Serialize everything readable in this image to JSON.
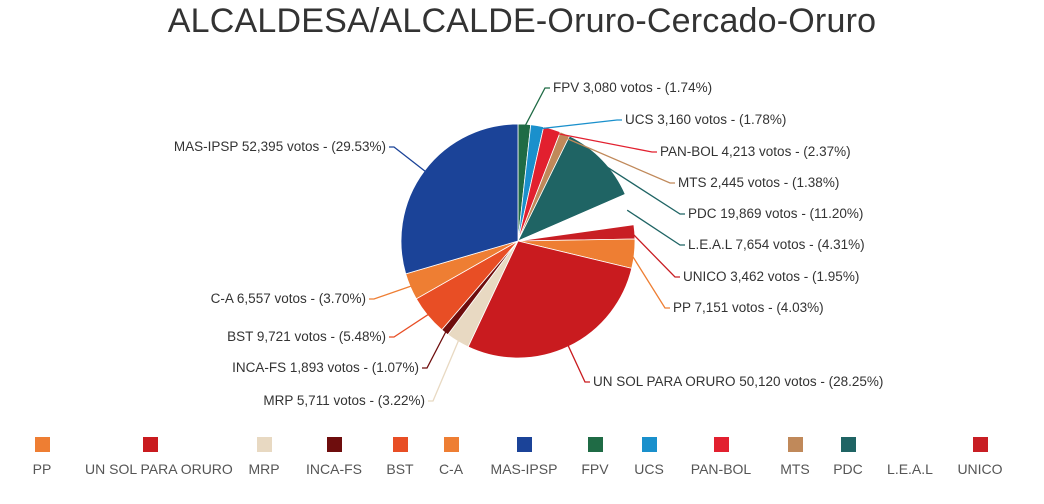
{
  "chart_data": {
    "type": "pie",
    "title": "ALCALDESA/ALCALDE-Oruro-Cercado-Oruro",
    "slices": [
      {
        "name": "FPV",
        "votes": 3080,
        "label": "FPV 3,080 votos - (1.74%)",
        "color": "#1f6b45"
      },
      {
        "name": "UCS",
        "votes": 3160,
        "label": "UCS 3,160 votos - (1.78%)",
        "color": "#1a90cc"
      },
      {
        "name": "PAN-BOL",
        "votes": 4213,
        "label": "PAN-BOL 4,213 votos - (2.37%)",
        "color": "#e2202f"
      },
      {
        "name": "MTS",
        "votes": 2445,
        "label": "MTS 2,445 votos - (1.38%)",
        "color": "#c0895a"
      },
      {
        "name": "PDC",
        "votes": 19869,
        "label": "PDC 19,869 votos - (11.20%)",
        "color": "#1f6464"
      },
      {
        "name": "L.E.A.L",
        "votes": 7654,
        "label": "L.E.A.L 7,654 votos - (4.31%)",
        "color": "#ffffff"
      },
      {
        "name": "UNICO",
        "votes": 3462,
        "label": "UNICO 3,462 votos - (1.95%)",
        "color": "#c81e24"
      },
      {
        "name": "PP",
        "votes": 7151,
        "label": "PP 7,151 votos - (4.03%)",
        "color": "#ee7e33"
      },
      {
        "name": "UN SOL PARA ORURO",
        "votes": 50120,
        "label": "UN SOL PARA ORURO 50,120 votos - (28.25%)",
        "color": "#c91b1f"
      },
      {
        "name": "MRP",
        "votes": 5711,
        "label": "MRP 5,711 votos - (3.22%)",
        "color": "#e8d9c2"
      },
      {
        "name": "INCA-FS",
        "votes": 1893,
        "label": "INCA-FS 1,893 votos - (1.07%)",
        "color": "#6e0d0d"
      },
      {
        "name": "BST",
        "votes": 9721,
        "label": "BST 9,721 votos - (5.48%)",
        "color": "#e84e25"
      },
      {
        "name": "C-A",
        "votes": 6557,
        "label": "C-A 6,557 votos - (3.70%)",
        "color": "#ee7e33"
      },
      {
        "name": "MAS-IPSP",
        "votes": 52395,
        "label": "MAS-IPSP 52,395 votos - (29.53%)",
        "color": "#1b4398"
      }
    ],
    "legend": [
      {
        "name": "PP",
        "color": "#ee7e33"
      },
      {
        "name": "UN SOL PARA ORURO",
        "color": "#c91b1f"
      },
      {
        "name": "MRP",
        "color": "#e8d9c2"
      },
      {
        "name": "INCA-FS",
        "color": "#6e0d0d"
      },
      {
        "name": "BST",
        "color": "#e84e25"
      },
      {
        "name": "C-A",
        "color": "#ee7e33"
      },
      {
        "name": "MAS-IPSP",
        "color": "#1b4398"
      },
      {
        "name": "FPV",
        "color": "#1f6b45"
      },
      {
        "name": "UCS",
        "color": "#1a90cc"
      },
      {
        "name": "PAN-BOL",
        "color": "#e2202f"
      },
      {
        "name": "MTS",
        "color": "#c0895a"
      },
      {
        "name": "PDC",
        "color": "#1f6464"
      },
      {
        "name": "L.E.A.L",
        "color": "#ffffff"
      },
      {
        "name": "UNICO",
        "color": "#c81e24"
      }
    ],
    "legend_placement": "bottom"
  }
}
